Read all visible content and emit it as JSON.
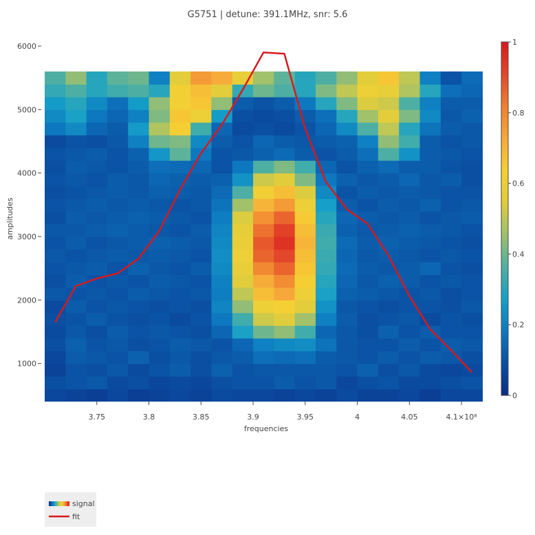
{
  "chart_data": {
    "type": "heatmap",
    "title": "G5751 | detune: 391.1MHz, snr: 5.6",
    "xlabel": "frequencies",
    "ylabel": "amplitudes",
    "x_ticks": [
      {
        "value": 375000000.0,
        "label": "3.75"
      },
      {
        "value": 380000000.0,
        "label": "3.8"
      },
      {
        "value": 385000000.0,
        "label": "3.85"
      },
      {
        "value": 390000000.0,
        "label": "3.9"
      },
      {
        "value": 395000000.0,
        "label": "3.95"
      },
      {
        "value": 400000000.0,
        "label": "4"
      },
      {
        "value": 405000000.0,
        "label": "4.05"
      },
      {
        "value": 410000000.0,
        "label": "4.1×10⁸"
      }
    ],
    "y_ticks": [
      1000,
      2000,
      3000,
      4000,
      5000,
      6000
    ],
    "xlim": [
      370000000.0,
      412500000.0
    ],
    "ylim": [
      400,
      6000
    ],
    "colorbar": {
      "min": 0,
      "max": 1,
      "ticks": [
        0,
        0.2,
        0.4,
        0.6,
        0.8,
        1
      ]
    },
    "colorscale": [
      "#0a2c84",
      "#0b4fa3",
      "#0d79c0",
      "#16a0c8",
      "#4fb0a2",
      "#9dc06e",
      "#e0cd3c",
      "#f5d033",
      "#f7a93a",
      "#f08030",
      "#e3462a",
      "#d7191c"
    ],
    "heatmap": {
      "x_start": 371000000.0,
      "x_step": 2000000.0,
      "y_start": 500,
      "y_step": 200,
      "z": [
        [
          0.07,
          0.06,
          0.05,
          0.07,
          0.05,
          0.06,
          0.07,
          0.06,
          0.08,
          0.07,
          0.07,
          0.06,
          0.07,
          0.06,
          0.08,
          0.06,
          0.06,
          0.07,
          0.05,
          0.07,
          0.07
        ],
        [
          0.09,
          0.1,
          0.11,
          0.08,
          0.09,
          0.07,
          0.08,
          0.07,
          0.09,
          0.1,
          0.1,
          0.12,
          0.1,
          0.11,
          0.07,
          0.09,
          0.1,
          0.08,
          0.08,
          0.09,
          0.1
        ],
        [
          0.06,
          0.1,
          0.09,
          0.11,
          0.08,
          0.1,
          0.12,
          0.09,
          0.13,
          0.1,
          0.11,
          0.11,
          0.11,
          0.11,
          0.1,
          0.13,
          0.09,
          0.11,
          0.08,
          0.07,
          0.08
        ],
        [
          0.07,
          0.12,
          0.11,
          0.1,
          0.13,
          0.09,
          0.11,
          0.09,
          0.11,
          0.12,
          0.16,
          0.15,
          0.16,
          0.12,
          0.11,
          0.1,
          0.12,
          0.1,
          0.12,
          0.11,
          0.09
        ],
        [
          0.09,
          0.13,
          0.1,
          0.11,
          0.09,
          0.1,
          0.12,
          0.11,
          0.1,
          0.14,
          0.2,
          0.22,
          0.23,
          0.17,
          0.11,
          0.1,
          0.1,
          0.12,
          0.1,
          0.12,
          0.11
        ],
        [
          0.08,
          0.11,
          0.09,
          0.12,
          0.1,
          0.11,
          0.1,
          0.09,
          0.14,
          0.28,
          0.4,
          0.44,
          0.34,
          0.14,
          0.11,
          0.09,
          0.13,
          0.1,
          0.12,
          0.1,
          0.1
        ],
        [
          0.09,
          0.1,
          0.12,
          0.1,
          0.09,
          0.1,
          0.08,
          0.1,
          0.18,
          0.34,
          0.52,
          0.55,
          0.46,
          0.2,
          0.12,
          0.09,
          0.1,
          0.11,
          0.08,
          0.1,
          0.09
        ],
        [
          0.08,
          0.12,
          0.1,
          0.11,
          0.1,
          0.09,
          0.1,
          0.09,
          0.21,
          0.44,
          0.6,
          0.63,
          0.56,
          0.24,
          0.11,
          0.1,
          0.09,
          0.1,
          0.1,
          0.09,
          0.11
        ],
        [
          0.11,
          0.1,
          0.11,
          0.1,
          0.12,
          0.11,
          0.1,
          0.11,
          0.19,
          0.5,
          0.68,
          0.73,
          0.6,
          0.28,
          0.13,
          0.12,
          0.11,
          0.1,
          0.11,
          0.09,
          0.1
        ],
        [
          0.09,
          0.12,
          0.1,
          0.11,
          0.1,
          0.12,
          0.11,
          0.1,
          0.2,
          0.55,
          0.72,
          0.79,
          0.64,
          0.3,
          0.14,
          0.11,
          0.13,
          0.12,
          0.1,
          0.11,
          0.1
        ],
        [
          0.1,
          0.11,
          0.12,
          0.1,
          0.13,
          0.11,
          0.1,
          0.12,
          0.22,
          0.58,
          0.8,
          0.86,
          0.66,
          0.32,
          0.15,
          0.12,
          0.11,
          0.12,
          0.14,
          0.1,
          0.09
        ],
        [
          0.11,
          0.1,
          0.11,
          0.12,
          0.11,
          0.12,
          0.11,
          0.1,
          0.23,
          0.6,
          0.86,
          0.91,
          0.68,
          0.33,
          0.14,
          0.11,
          0.12,
          0.11,
          0.1,
          0.11,
          0.1
        ],
        [
          0.1,
          0.12,
          0.1,
          0.11,
          0.12,
          0.13,
          0.12,
          0.11,
          0.22,
          0.59,
          0.88,
          0.95,
          0.7,
          0.34,
          0.15,
          0.12,
          0.13,
          0.12,
          0.11,
          0.1,
          0.09
        ],
        [
          0.11,
          0.11,
          0.12,
          0.13,
          0.12,
          0.11,
          0.1,
          0.12,
          0.21,
          0.57,
          0.84,
          0.92,
          0.68,
          0.33,
          0.13,
          0.11,
          0.12,
          0.13,
          0.12,
          0.11,
          0.1
        ],
        [
          0.09,
          0.12,
          0.11,
          0.12,
          0.13,
          0.12,
          0.11,
          0.1,
          0.19,
          0.54,
          0.78,
          0.86,
          0.65,
          0.3,
          0.14,
          0.12,
          0.11,
          0.12,
          0.1,
          0.11,
          0.12
        ],
        [
          0.1,
          0.11,
          0.12,
          0.11,
          0.12,
          0.11,
          0.1,
          0.11,
          0.17,
          0.46,
          0.7,
          0.76,
          0.6,
          0.27,
          0.12,
          0.1,
          0.12,
          0.11,
          0.13,
          0.1,
          0.11
        ],
        [
          0.09,
          0.1,
          0.11,
          0.12,
          0.11,
          0.13,
          0.12,
          0.11,
          0.15,
          0.36,
          0.62,
          0.68,
          0.54,
          0.22,
          0.1,
          0.12,
          0.11,
          0.12,
          0.11,
          0.1,
          0.1
        ],
        [
          0.1,
          0.11,
          0.1,
          0.12,
          0.11,
          0.14,
          0.13,
          0.12,
          0.13,
          0.24,
          0.52,
          0.55,
          0.42,
          0.18,
          0.13,
          0.11,
          0.12,
          0.14,
          0.11,
          0.12,
          0.09
        ],
        [
          0.09,
          0.12,
          0.11,
          0.1,
          0.12,
          0.16,
          0.15,
          0.14,
          0.1,
          0.18,
          0.36,
          0.42,
          0.34,
          0.14,
          0.1,
          0.13,
          0.15,
          0.12,
          0.12,
          0.1,
          0.09
        ],
        [
          0.1,
          0.11,
          0.12,
          0.1,
          0.13,
          0.25,
          0.38,
          0.18,
          0.1,
          0.11,
          0.13,
          0.15,
          0.12,
          0.1,
          0.12,
          0.16,
          0.36,
          0.24,
          0.12,
          0.11,
          0.1
        ],
        [
          0.08,
          0.1,
          0.09,
          0.11,
          0.2,
          0.4,
          0.42,
          0.22,
          0.12,
          0.1,
          0.14,
          0.12,
          0.11,
          0.12,
          0.13,
          0.2,
          0.44,
          0.34,
          0.12,
          0.1,
          0.11
        ],
        [
          0.18,
          0.22,
          0.14,
          0.12,
          0.26,
          0.48,
          0.64,
          0.34,
          0.14,
          0.08,
          0.09,
          0.08,
          0.1,
          0.14,
          0.22,
          0.36,
          0.5,
          0.3,
          0.17,
          0.12,
          0.11
        ],
        [
          0.22,
          0.28,
          0.18,
          0.14,
          0.2,
          0.42,
          0.66,
          0.6,
          0.26,
          0.09,
          0.08,
          0.09,
          0.12,
          0.16,
          0.3,
          0.46,
          0.56,
          0.42,
          0.22,
          0.11,
          0.13
        ],
        [
          0.26,
          0.3,
          0.22,
          0.16,
          0.26,
          0.44,
          0.62,
          0.66,
          0.44,
          0.12,
          0.1,
          0.12,
          0.18,
          0.3,
          0.42,
          0.54,
          0.52,
          0.36,
          0.2,
          0.12,
          0.12
        ],
        [
          0.32,
          0.36,
          0.3,
          0.34,
          0.36,
          0.3,
          0.62,
          0.68,
          0.56,
          0.32,
          0.4,
          0.36,
          0.3,
          0.42,
          0.5,
          0.6,
          0.58,
          0.48,
          0.3,
          0.16,
          0.14
        ],
        [
          0.36,
          0.44,
          0.3,
          0.38,
          0.4,
          0.2,
          0.56,
          0.76,
          0.72,
          0.58,
          0.46,
          0.38,
          0.3,
          0.36,
          0.44,
          0.56,
          0.66,
          0.5,
          0.2,
          0.1,
          0.15
        ]
      ]
    },
    "fit": {
      "x": [
        371000000.0,
        373000000.0,
        375000000.0,
        377000000.0,
        379000000.0,
        381000000.0,
        383000000.0,
        385000000.0,
        387000000.0,
        389000000.0,
        391000000.0,
        393000000.0,
        395000000.0,
        397000000.0,
        399000000.0,
        401000000.0,
        403000000.0,
        405000000.0,
        407000000.0,
        409000000.0,
        411000000.0
      ],
      "y": [
        1650,
        2220,
        2340,
        2420,
        2650,
        3090,
        3740,
        4310,
        4760,
        5310,
        5900,
        5880,
        4700,
        3860,
        3430,
        3200,
        2700,
        2060,
        1540,
        1210,
        860
      ]
    },
    "legend": {
      "placement": "bottom-left",
      "items": [
        {
          "name": "signal",
          "kind": "colorscale"
        },
        {
          "name": "fit",
          "kind": "line",
          "color": "#d7191c"
        }
      ]
    }
  }
}
